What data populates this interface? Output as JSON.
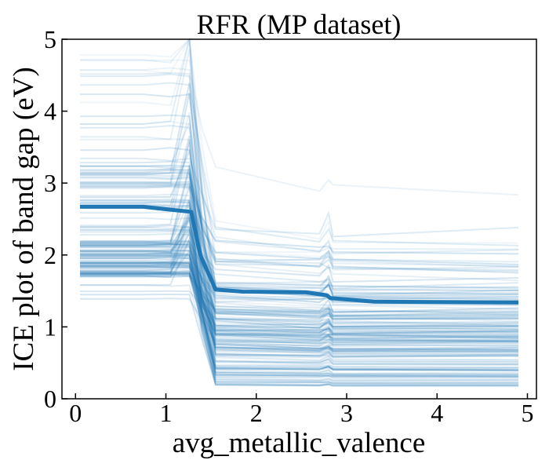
{
  "chart_data": {
    "type": "line",
    "title": "RFR (MP dataset)",
    "xlabel": "avg_metallic_valence",
    "ylabel": "ICE plot of band gap (eV)",
    "xlim": [
      -0.15,
      5.1
    ],
    "ylim": [
      0,
      5
    ],
    "xticks": [
      0,
      1,
      2,
      3,
      4,
      5
    ],
    "yticks": [
      0,
      1,
      2,
      3,
      4,
      5
    ],
    "grid": false,
    "legend": "none",
    "colors": {
      "ice": "#1f77b4",
      "pdp": "#1f77b4"
    },
    "x": [
      0.05,
      0.75,
      1.05,
      1.28,
      1.38,
      1.55,
      1.85,
      2.55,
      2.78,
      2.82,
      3.3,
      4.9
    ],
    "average_series": {
      "values": [
        2.67,
        2.67,
        2.63,
        2.6,
        2.0,
        1.52,
        1.49,
        1.48,
        1.44,
        1.4,
        1.35,
        1.34
      ]
    },
    "ice_series_count": 160,
    "ice_baseline_range": [
      1.37,
      5.0
    ],
    "ice_drop_ratio_range": [
      0.1,
      0.72
    ]
  }
}
